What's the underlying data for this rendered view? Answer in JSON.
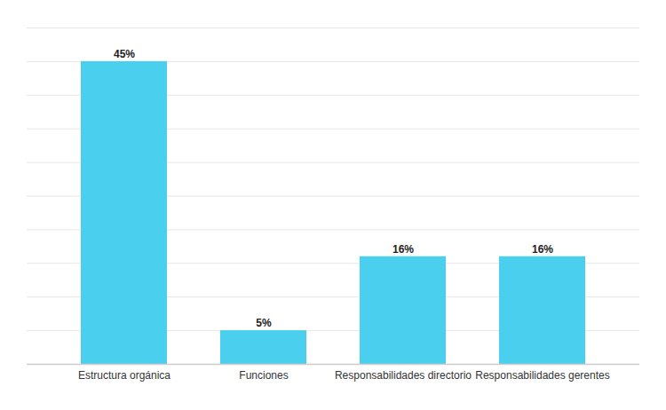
{
  "chart_data": {
    "type": "bar",
    "categories": [
      "Estructura orgánica",
      "Funciones",
      "Responsabilidades directorio",
      "Responsabilidades gerentes"
    ],
    "values": [
      45,
      5,
      16,
      16
    ],
    "value_labels": [
      "45%",
      "5%",
      "16%",
      "16%"
    ],
    "color": "#4bcfee",
    "ylim": [
      0,
      50
    ],
    "yticks": [
      0,
      5,
      10,
      15,
      20,
      25,
      30,
      35,
      40,
      45,
      50
    ],
    "grid": true,
    "data_labels": true,
    "tick_labels": "x"
  }
}
